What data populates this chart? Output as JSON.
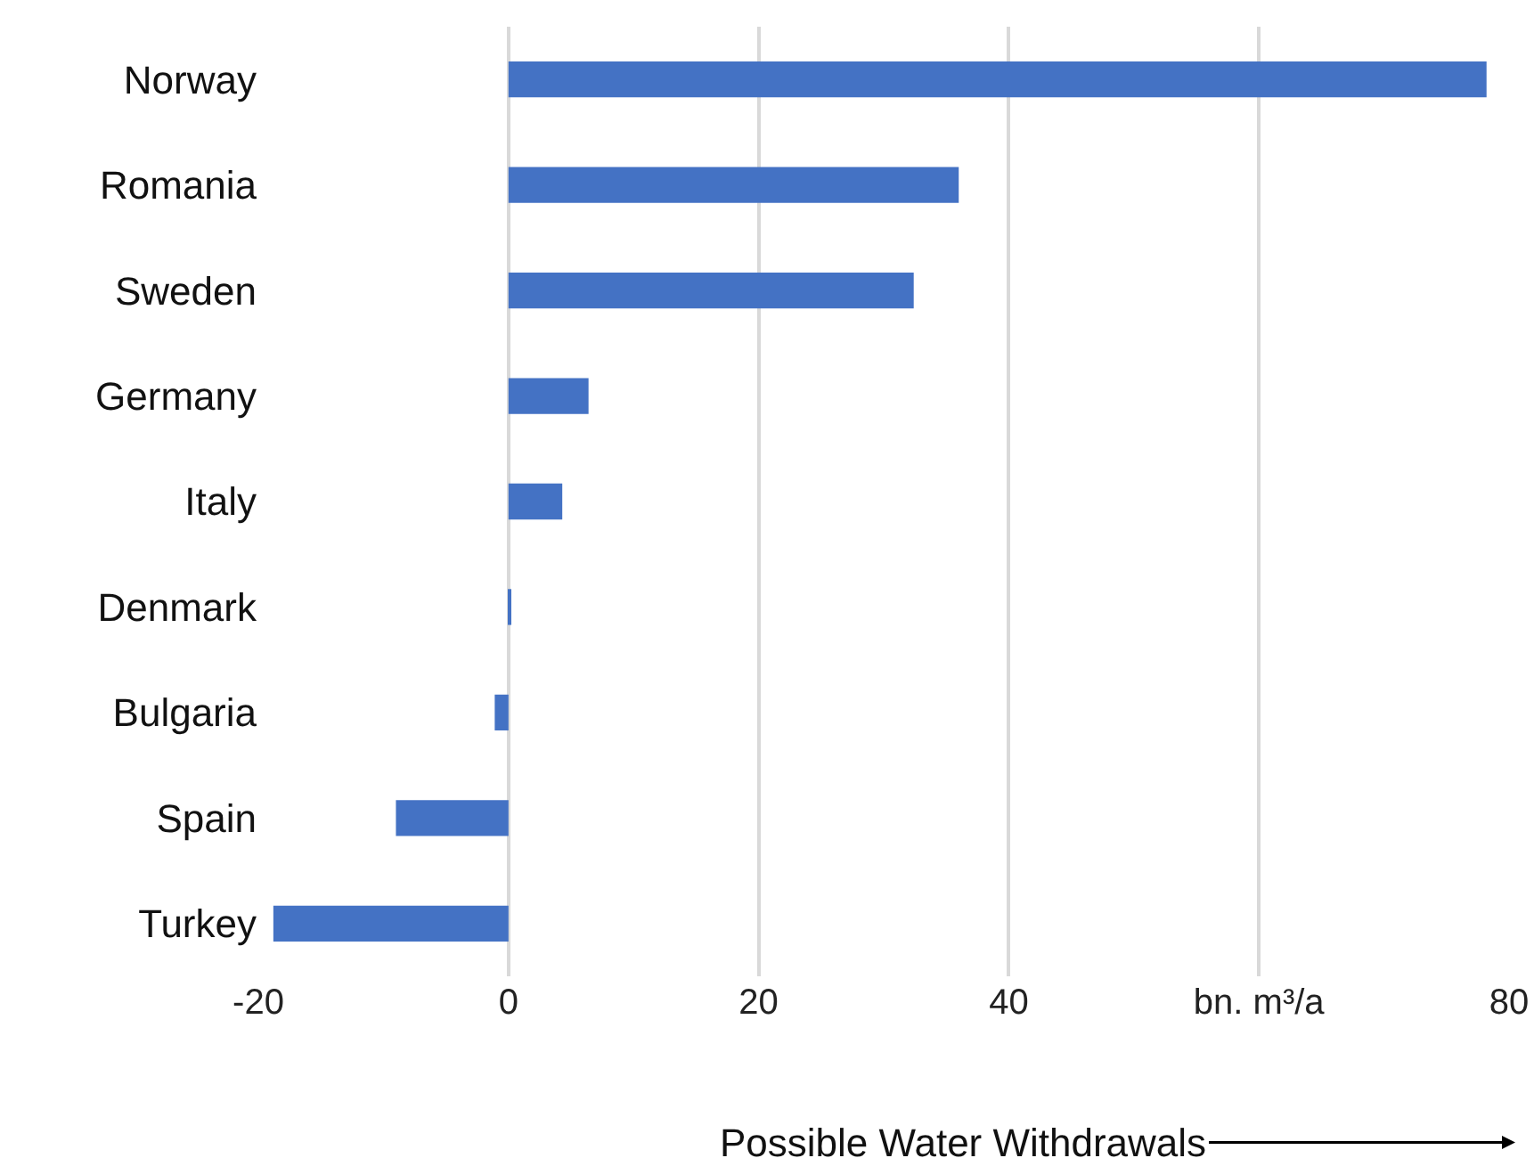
{
  "chart_data": {
    "type": "bar",
    "orientation": "horizontal",
    "categories": [
      "Norway",
      "Romania",
      "Sweden",
      "Germany",
      "Italy",
      "Denmark",
      "Bulgaria",
      "Spain",
      "Turkey"
    ],
    "values": [
      78.2,
      36.0,
      32.4,
      6.4,
      4.3,
      0.1,
      -1.1,
      -9.0,
      -18.8
    ],
    "color": "#4472c4",
    "xlim": [
      -20,
      80
    ],
    "xticks": [
      -20,
      0,
      20,
      40,
      {
        "value": 60,
        "label": "bn. m³/a"
      },
      80
    ],
    "grid": "x",
    "annotations": [
      "Possible Water Withdrawals"
    ]
  }
}
